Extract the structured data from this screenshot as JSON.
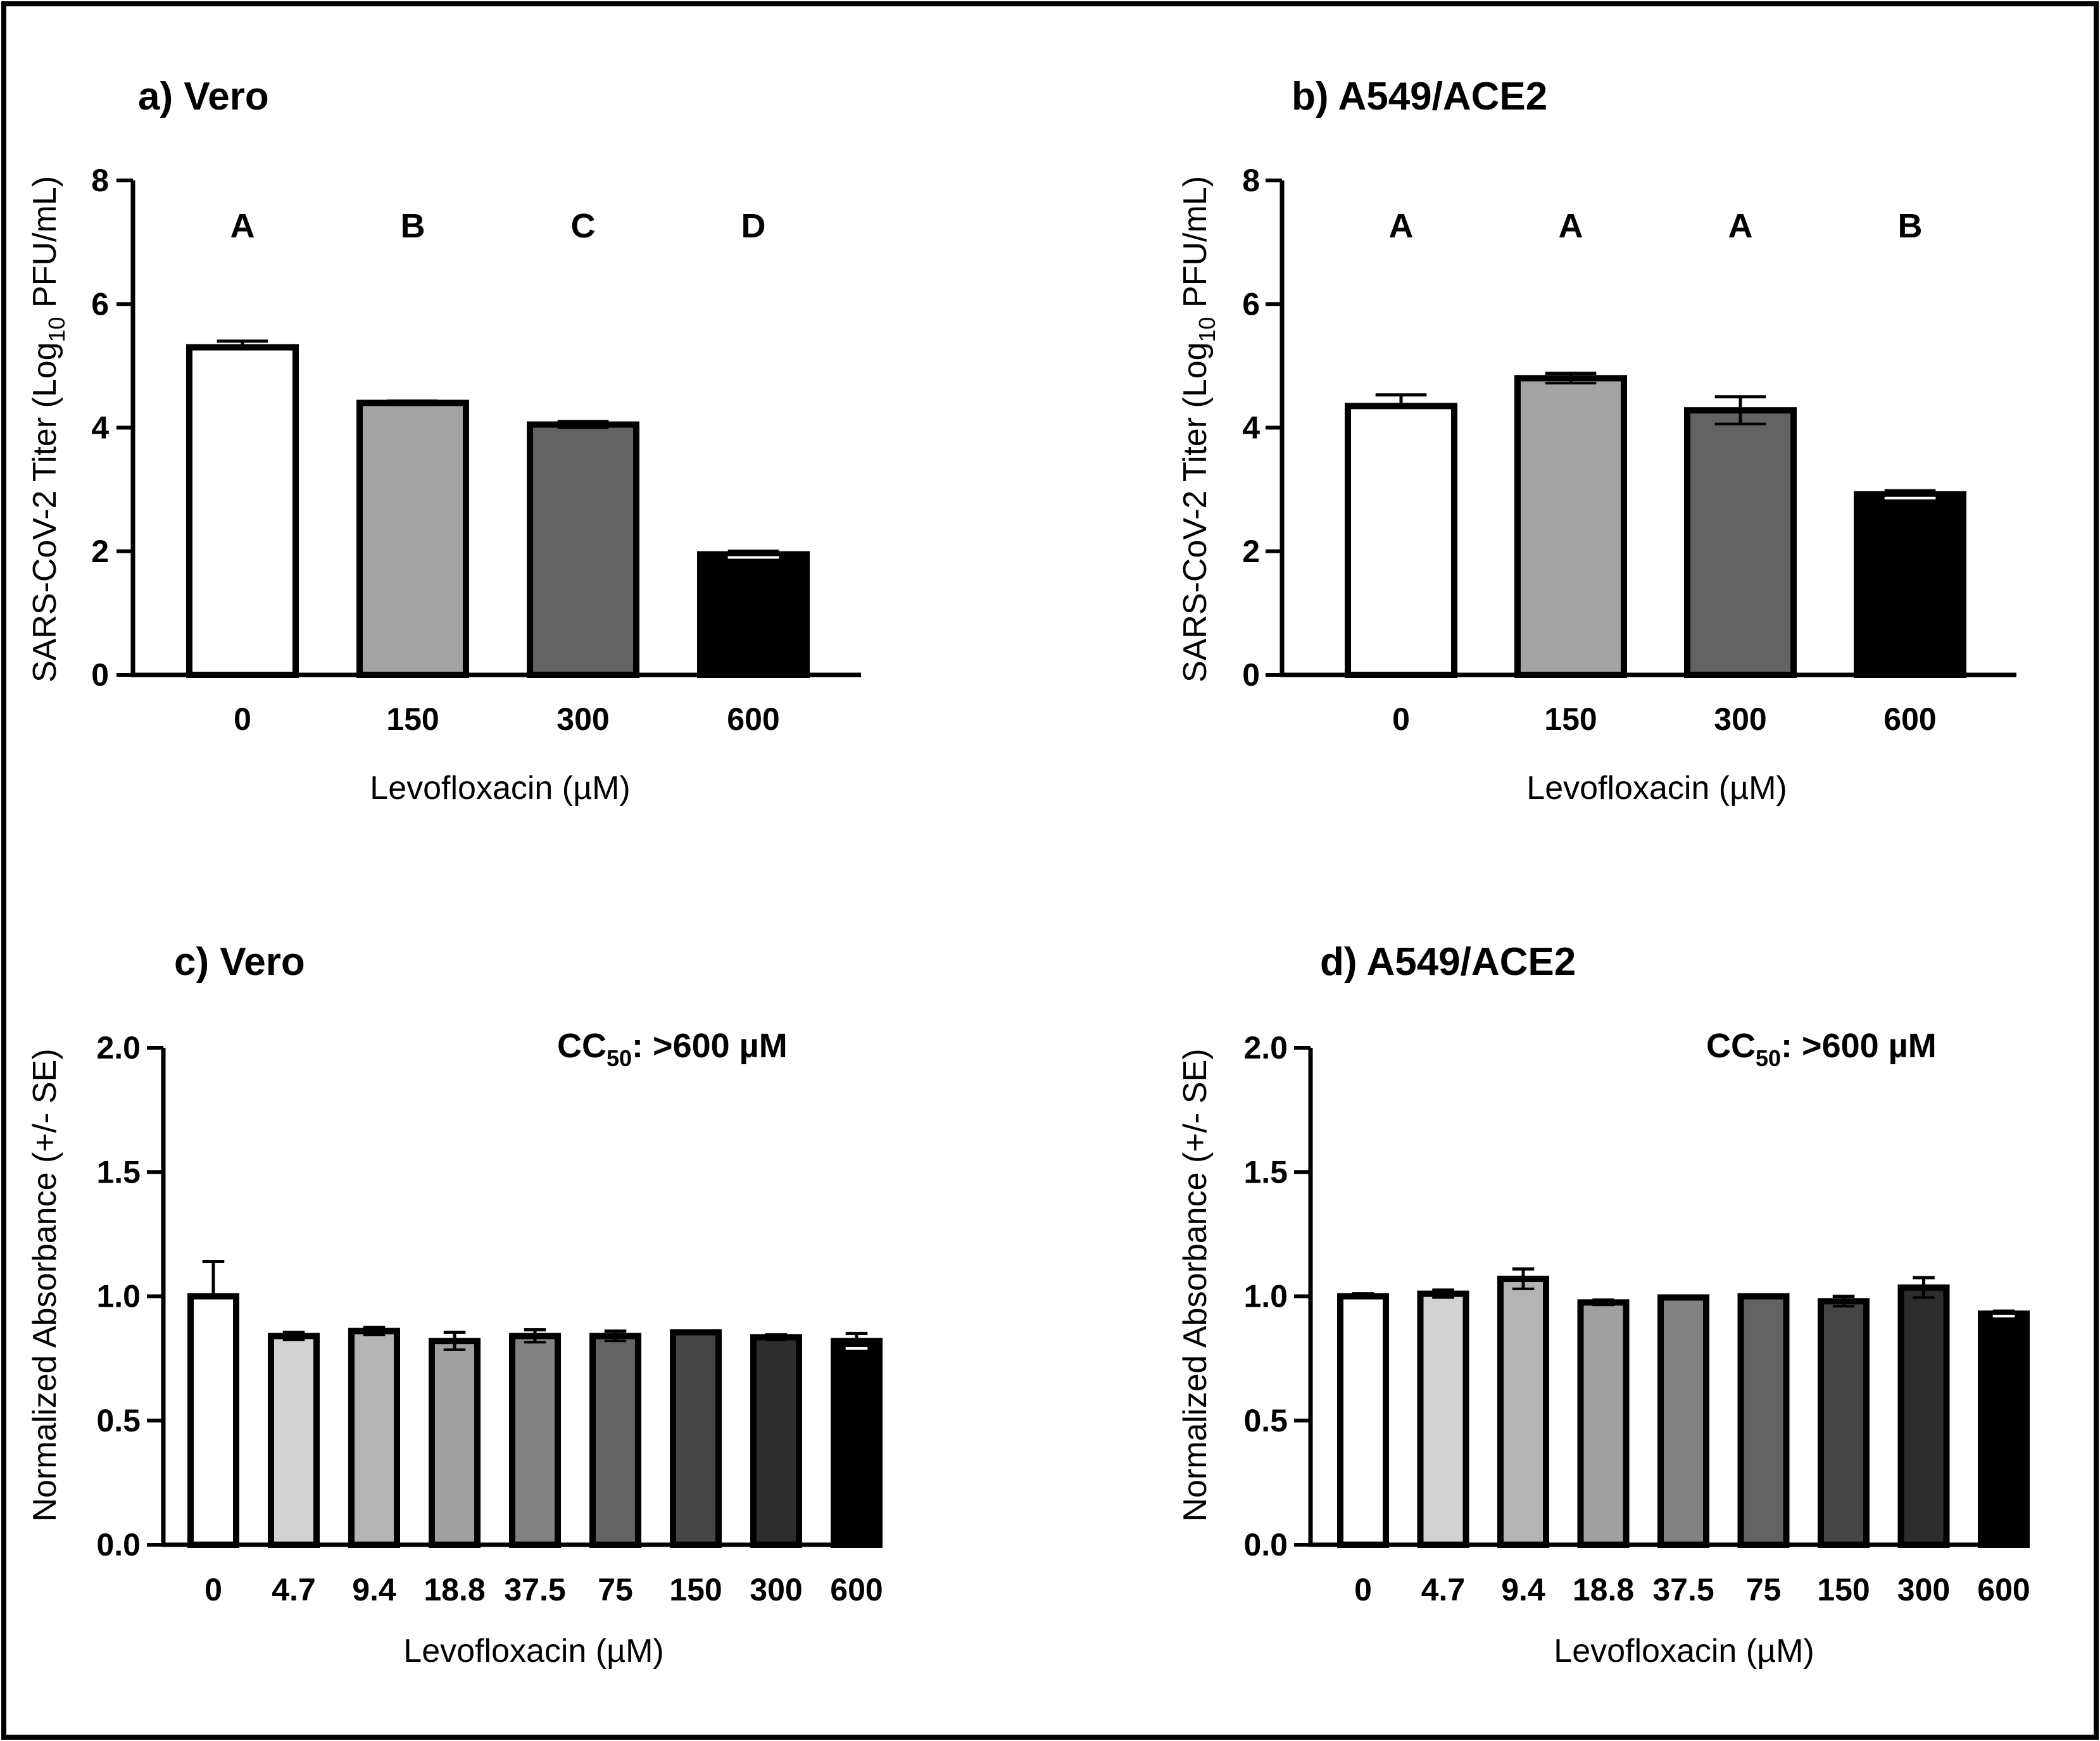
{
  "colors": {
    "frame": "#000000",
    "background": "#ffffff"
  },
  "chart_data": [
    {
      "type": "bar",
      "title": "a) Vero",
      "xlabel": "Levofloxacin (µM)",
      "ylabel_main": "SARS-CoV-2 Titer (Log",
      "ylabel_sub": "10",
      "ylabel_tail": " PFU/mL)",
      "categories": [
        "0",
        "150",
        "300",
        "600"
      ],
      "values": [
        5.3,
        4.4,
        4.05,
        1.95
      ],
      "errors": [
        0.1,
        0.03,
        0.05,
        0.05
      ],
      "fills": [
        "#ffffff",
        "#a3a3a3",
        "#636363",
        "#000000"
      ],
      "group_letters": [
        "A",
        "B",
        "C",
        "D"
      ],
      "ylim": [
        0,
        8
      ],
      "yticks": [
        0,
        2,
        4,
        6,
        8
      ],
      "ytick_labels": [
        "0",
        "2",
        "4",
        "6",
        "8"
      ]
    },
    {
      "type": "bar",
      "title": "b) A549/ACE2",
      "xlabel": "Levofloxacin (µM)",
      "ylabel_main": "SARS-CoV-2 Titer (Log",
      "ylabel_sub": "10",
      "ylabel_tail": " PFU/mL)",
      "categories": [
        "0",
        "150",
        "300",
        "600"
      ],
      "values": [
        4.35,
        4.8,
        4.28,
        2.92
      ],
      "errors": [
        0.18,
        0.08,
        0.22,
        0.06
      ],
      "fills": [
        "#ffffff",
        "#a3a3a3",
        "#636363",
        "#000000"
      ],
      "group_letters": [
        "A",
        "A",
        "A",
        "B"
      ],
      "ylim": [
        0,
        8
      ],
      "yticks": [
        0,
        2,
        4,
        6,
        8
      ],
      "ytick_labels": [
        "0",
        "2",
        "4",
        "6",
        "8"
      ]
    },
    {
      "type": "bar",
      "title": "c) Vero",
      "xlabel": "Levofloxacin (µM)",
      "ylabel": "Normalized Absorbance (+/- SE)",
      "cc50_main": "CC",
      "cc50_sub": "50",
      "cc50_tail": ": >600 µM",
      "categories": [
        "0",
        "4.7",
        "9.4",
        "18.8",
        "37.5",
        "75",
        "150",
        "300",
        "600"
      ],
      "values": [
        1.0,
        0.84,
        0.86,
        0.82,
        0.84,
        0.84,
        0.855,
        0.835,
        0.82
      ],
      "errors": [
        0.14,
        0.015,
        0.015,
        0.035,
        0.025,
        0.02,
        0.005,
        0.01,
        0.03
      ],
      "fills": [
        "#ffffff",
        "#d2d2d2",
        "#b4b4b4",
        "#a0a0a0",
        "#828282",
        "#636363",
        "#454545",
        "#2d2d2d",
        "#000000"
      ],
      "ylim": [
        0,
        2.0
      ],
      "yticks": [
        0,
        0.5,
        1.0,
        1.5,
        2.0
      ],
      "ytick_labels": [
        "0.0",
        "0.5",
        "1.0",
        "1.5",
        "2.0"
      ]
    },
    {
      "type": "bar",
      "title": "d) A549/ACE2",
      "xlabel": "Levofloxacin (µM)",
      "ylabel": "Normalized Absorbance (+/- SE)",
      "cc50_main": "CC",
      "cc50_sub": "50",
      "cc50_tail": ": >600 µM",
      "categories": [
        "0",
        "4.7",
        "9.4",
        "18.8",
        "37.5",
        "75",
        "150",
        "300",
        "600"
      ],
      "values": [
        1.0,
        1.01,
        1.07,
        0.975,
        0.995,
        1.0,
        0.98,
        1.035,
        0.93
      ],
      "errors": [
        0.01,
        0.015,
        0.04,
        0.01,
        0.005,
        0.005,
        0.02,
        0.04,
        0.01
      ],
      "fills": [
        "#ffffff",
        "#d2d2d2",
        "#b4b4b4",
        "#a0a0a0",
        "#828282",
        "#636363",
        "#454545",
        "#2d2d2d",
        "#000000"
      ],
      "ylim": [
        0,
        2.0
      ],
      "yticks": [
        0,
        0.5,
        1.0,
        1.5,
        2.0
      ],
      "ytick_labels": [
        "0.0",
        "0.5",
        "1.0",
        "1.5",
        "2.0"
      ]
    }
  ]
}
